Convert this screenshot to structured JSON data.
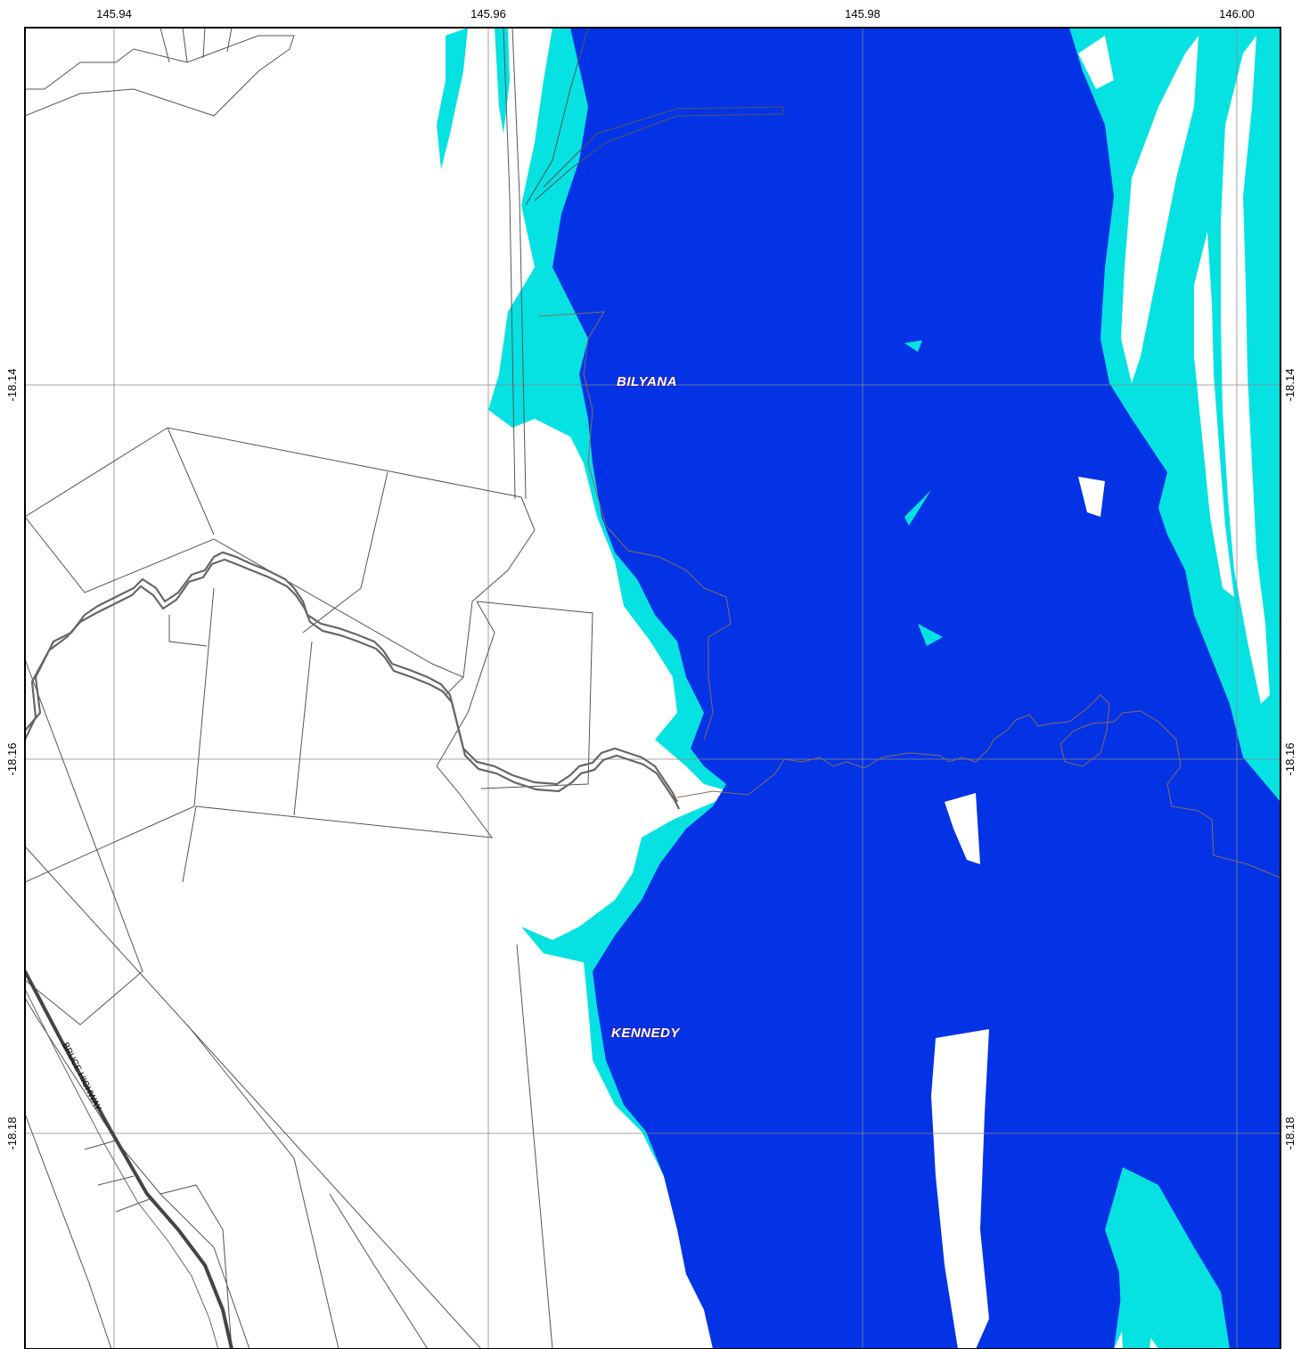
{
  "map": {
    "longitude_ticks": [
      "145.94",
      "145.96",
      "145.98",
      "146.00"
    ],
    "latitude_ticks": [
      "-18.14",
      "-18.16",
      "-18.18"
    ],
    "place_labels": [
      "BILYANA",
      "KENNEDY"
    ],
    "road_label": "BRUCE HIGHWAY"
  },
  "colors": {
    "deep_water": "#0433e6",
    "shallow_water": "#06e2e2",
    "land": "#ffffff",
    "boundary_lines": "#555555",
    "grid": "#888888"
  }
}
